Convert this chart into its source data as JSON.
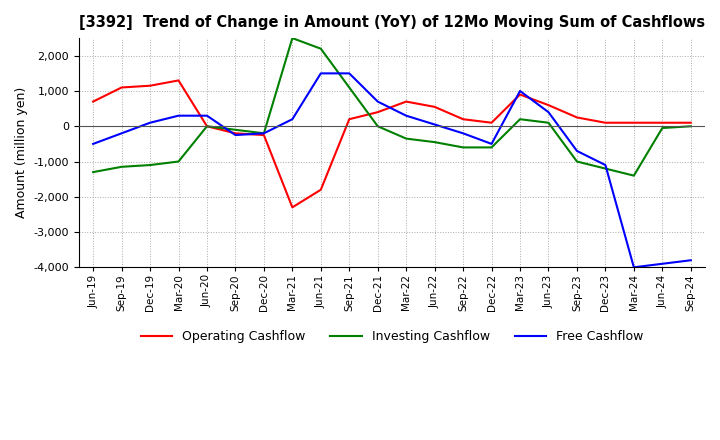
{
  "title": "[3392]  Trend of Change in Amount (YoY) of 12Mo Moving Sum of Cashflows",
  "ylabel": "Amount (million yen)",
  "ylim": [
    -4000,
    2500
  ],
  "yticks": [
    -4000,
    -3000,
    -2000,
    -1000,
    0,
    1000,
    2000
  ],
  "background_color": "#ffffff",
  "grid_color": "#aaaaaa",
  "x_labels": [
    "Jun-19",
    "Sep-19",
    "Dec-19",
    "Mar-20",
    "Jun-20",
    "Sep-20",
    "Dec-20",
    "Mar-21",
    "Jun-21",
    "Sep-21",
    "Dec-21",
    "Mar-22",
    "Jun-22",
    "Sep-22",
    "Dec-22",
    "Mar-23",
    "Jun-23",
    "Sep-23",
    "Dec-23",
    "Mar-24",
    "Jun-24",
    "Sep-24"
  ],
  "operating": [
    700,
    1100,
    1150,
    1300,
    0,
    -200,
    -250,
    -2300,
    -1800,
    200,
    400,
    700,
    550,
    200,
    100,
    900,
    600,
    250,
    100,
    100,
    100,
    100
  ],
  "investing": [
    -1300,
    -1150,
    -1100,
    -1000,
    0,
    -100,
    -200,
    2500,
    2200,
    1100,
    0,
    -350,
    -450,
    -600,
    -600,
    200,
    100,
    -1000,
    -1200,
    -1400,
    -50,
    0
  ],
  "free": [
    -500,
    -200,
    100,
    300,
    300,
    -250,
    -200,
    200,
    1500,
    1500,
    700,
    300,
    50,
    -200,
    -500,
    1000,
    400,
    -700,
    -1100,
    -4000,
    -3900,
    -3800
  ],
  "op_color": "#ff0000",
  "inv_color": "#008000",
  "free_color": "#0000ff",
  "legend_labels": [
    "Operating Cashflow",
    "Investing Cashflow",
    "Free Cashflow"
  ]
}
